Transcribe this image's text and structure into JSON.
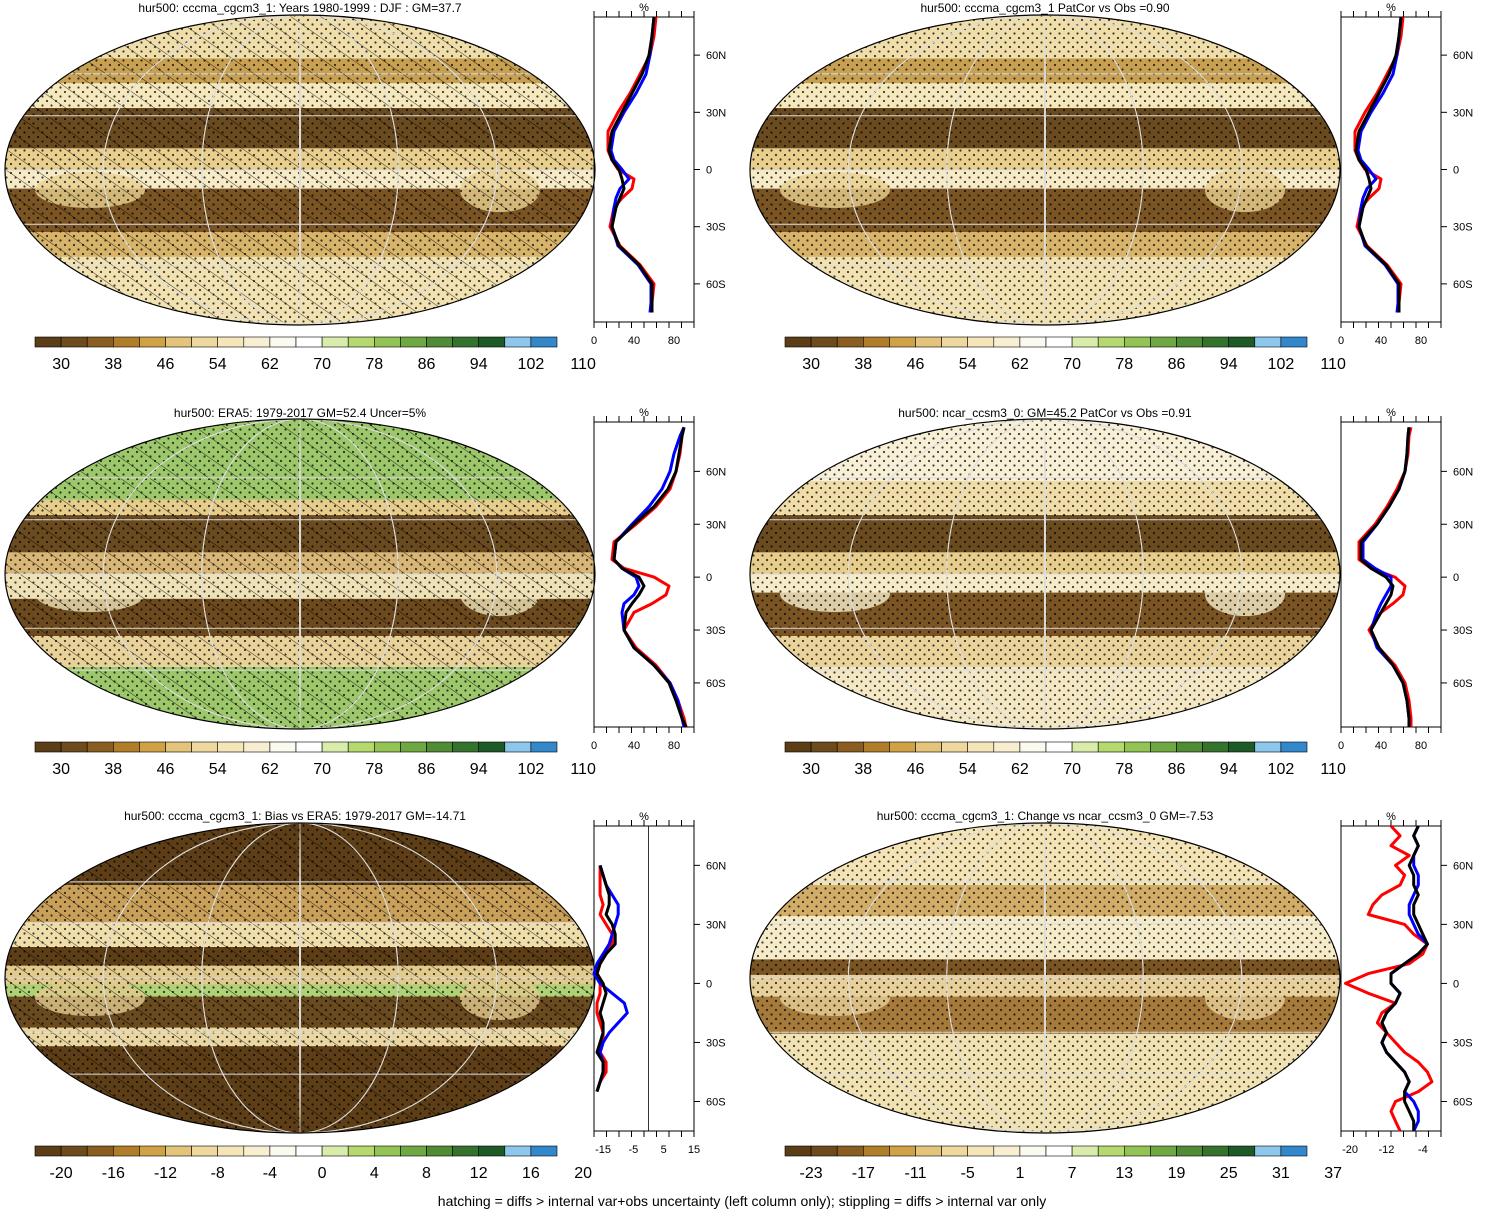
{
  "footnote": "hatching = diffs > internal var+obs uncertainty (left column only); stippling = diffs > internal var only",
  "colors": {
    "model": "#000000",
    "obs": "#0000ff",
    "second": "#ff0000",
    "palette": [
      "#5b3d17",
      "#6e4b1c",
      "#8a5e21",
      "#b07e2b",
      "#cfa345",
      "#e3c47a",
      "#eed89f",
      "#f4e6b9",
      "#f8efd2",
      "#fafaf0",
      "#ffffff",
      "#d9ecab",
      "#b5d86f",
      "#93c355",
      "#6fa843",
      "#4f8c35",
      "#35722d",
      "#1e5a27",
      "#8ec7ec",
      "#3388cc"
    ]
  },
  "panels": [
    {
      "title": "hur500: cccma_cgcm3_1: Years 1980-1999 : DJF : GM=37.7",
      "colorbar_labels": [
        "30",
        "38",
        "46",
        "54",
        "62",
        "70",
        "78",
        "86",
        "94",
        "102",
        "110"
      ],
      "profile_unit": "%",
      "profile_xticks": [
        "0",
        "40",
        "80"
      ]
    },
    {
      "title": "hur500: cccma_cgcm3_1 PatCor vs Obs =0.90",
      "colorbar_labels": [
        "30",
        "38",
        "46",
        "54",
        "62",
        "70",
        "78",
        "86",
        "94",
        "102",
        "110"
      ],
      "profile_unit": "%",
      "profile_xticks": [
        "0",
        "40",
        "80"
      ]
    },
    {
      "title": "hur500: ERA5: 1979-2017 GM=52.4 Uncer=5%",
      "colorbar_labels": [
        "30",
        "38",
        "46",
        "54",
        "62",
        "70",
        "78",
        "86",
        "94",
        "102",
        "110"
      ],
      "profile_unit": "%",
      "profile_xticks": [
        "0",
        "40",
        "80"
      ]
    },
    {
      "title": "hur500: ncar_ccsm3_0: GM=45.2 PatCor vs Obs =0.91",
      "colorbar_labels": [
        "30",
        "38",
        "46",
        "54",
        "62",
        "70",
        "78",
        "86",
        "94",
        "102",
        "110"
      ],
      "profile_unit": "%",
      "profile_xticks": [
        "0",
        "40",
        "80"
      ]
    },
    {
      "title": "hur500: cccma_cgcm3_1: Bias vs ERA5: 1979-2017 GM=-14.71",
      "colorbar_labels": [
        "-20",
        "-16",
        "-12",
        "-8",
        "-4",
        "0",
        "4",
        "8",
        "12",
        "16",
        "20"
      ],
      "profile_unit": "%",
      "profile_xticks": [
        "-15",
        "-5",
        "5",
        "15"
      ]
    },
    {
      "title": "hur500: cccma_cgcm3_1: Change vs ncar_ccsm3_0 GM=-7.53",
      "colorbar_labels": [
        "-23",
        "-17",
        "-11",
        "-5",
        "1",
        "7",
        "13",
        "19",
        "25",
        "31",
        "37"
      ],
      "profile_unit": "%",
      "profile_xticks": [
        "-20",
        "-12",
        "-4"
      ]
    }
  ],
  "chart_data": {
    "type": "line",
    "lat_ticks": [
      "60N",
      "30N",
      "0",
      "30S",
      "60S"
    ],
    "profiles": [
      {
        "panel": 0,
        "xlim": [
          0,
          100
        ],
        "lat": [
          80,
          70,
          60,
          50,
          40,
          30,
          20,
          10,
          5,
          0,
          -5,
          -10,
          -15,
          -20,
          -30,
          -40,
          -50,
          -60,
          -70,
          -75
        ],
        "series": [
          {
            "name": "",
            "color": "black",
            "values": [
              60,
              58,
              55,
              48,
              38,
              28,
              18,
              15,
              18,
              25,
              28,
              30,
              26,
              22,
              18,
              25,
              45,
              58,
              58,
              58
            ]
          },
          {
            "name": "",
            "color": "blue",
            "values": [
              60,
              58,
              56,
              52,
              42,
              30,
              20,
              17,
              20,
              28,
              35,
              26,
              22,
              20,
              18,
              24,
              44,
              57,
              57,
              56
            ]
          },
          {
            "name": "",
            "color": "red",
            "values": [
              62,
              60,
              56,
              46,
              36,
              24,
              14,
              14,
              18,
              24,
              40,
              38,
              28,
              20,
              16,
              26,
              46,
              60,
              58,
              58
            ]
          }
        ]
      },
      {
        "panel": 1,
        "xlim": [
          0,
          100
        ],
        "lat": [
          80,
          70,
          60,
          50,
          40,
          30,
          20,
          10,
          5,
          0,
          -5,
          -10,
          -15,
          -20,
          -30,
          -40,
          -50,
          -60,
          -70,
          -75
        ],
        "series": [
          {
            "name": "",
            "color": "black",
            "values": [
              60,
              58,
              55,
              48,
              38,
              28,
              18,
              15,
              18,
              25,
              28,
              30,
              26,
              22,
              18,
              25,
              45,
              58,
              58,
              58
            ]
          },
          {
            "name": "",
            "color": "blue",
            "values": [
              60,
              58,
              56,
              52,
              42,
              30,
              20,
              17,
              20,
              28,
              35,
              26,
              22,
              20,
              18,
              24,
              44,
              57,
              57,
              56
            ]
          },
          {
            "name": "",
            "color": "red",
            "values": [
              62,
              60,
              56,
              46,
              36,
              24,
              14,
              14,
              18,
              24,
              40,
              38,
              28,
              20,
              16,
              26,
              46,
              60,
              58,
              58
            ]
          }
        ]
      },
      {
        "panel": 2,
        "xlim": [
          0,
          100
        ],
        "lat": [
          85,
          80,
          70,
          60,
          50,
          40,
          30,
          20,
          10,
          5,
          0,
          -5,
          -10,
          -15,
          -20,
          -30,
          -40,
          -50,
          -60,
          -70,
          -80,
          -85
        ],
        "series": [
          {
            "name": "",
            "color": "black",
            "values": [
              90,
              88,
              85,
              82,
              74,
              60,
              40,
              22,
              20,
              28,
              45,
              50,
              45,
              38,
              32,
              30,
              40,
              60,
              75,
              82,
              88,
              92
            ]
          },
          {
            "name": "",
            "color": "blue",
            "values": [
              90,
              86,
              80,
              76,
              68,
              55,
              38,
              22,
              20,
              28,
              42,
              45,
              40,
              30,
              28,
              30,
              40,
              60,
              76,
              84,
              88,
              90
            ]
          },
          {
            "name": "",
            "color": "red",
            "values": [
              90,
              88,
              86,
              82,
              76,
              62,
              42,
              20,
              18,
              30,
              60,
              75,
              72,
              58,
              40,
              30,
              42,
              62,
              76,
              84,
              90,
              92
            ]
          }
        ]
      },
      {
        "panel": 3,
        "xlim": [
          0,
          100
        ],
        "lat": [
          85,
          80,
          70,
          60,
          50,
          40,
          30,
          20,
          10,
          5,
          0,
          -5,
          -10,
          -15,
          -20,
          -30,
          -40,
          -50,
          -60,
          -70,
          -80,
          -85
        ],
        "series": [
          {
            "name": "",
            "color": "black",
            "values": [
              68,
              67,
              66,
              64,
              58,
              48,
              36,
              20,
              20,
              30,
              45,
              52,
              50,
              45,
              40,
              30,
              38,
              52,
              62,
              66,
              68,
              68
            ]
          },
          {
            "name": "",
            "color": "blue",
            "values": [
              68,
              67,
              66,
              64,
              58,
              48,
              36,
              22,
              22,
              34,
              50,
              50,
              45,
              40,
              36,
              30,
              36,
              52,
              62,
              66,
              68,
              68
            ]
          },
          {
            "name": "",
            "color": "red",
            "values": [
              70,
              68,
              67,
              64,
              56,
              46,
              34,
              18,
              18,
              30,
              54,
              64,
              62,
              52,
              40,
              28,
              38,
              54,
              64,
              68,
              70,
              70
            ]
          }
        ]
      },
      {
        "panel": 4,
        "xlim": [
          -18,
          15
        ],
        "lat": [
          60,
          55,
          50,
          45,
          40,
          35,
          30,
          25,
          20,
          15,
          10,
          5,
          0,
          -5,
          -10,
          -15,
          -20,
          -25,
          -30,
          -35,
          -40,
          -45,
          -50,
          -55
        ],
        "series": [
          {
            "name": "",
            "color": "black",
            "values": [
              -16,
              -15,
              -14,
              -13,
              -13,
              -14,
              -12,
              -11,
              -11,
              -14,
              -16,
              -17,
              -15,
              -14,
              -15,
              -16,
              -15,
              -15,
              -16,
              -17,
              -15,
              -15,
              -16,
              -17
            ]
          },
          {
            "name": "",
            "color": "blue",
            "values": [
              -16,
              -15,
              -14,
              -12,
              -10,
              -10,
              -11,
              -12,
              -13,
              -15,
              -17,
              -18,
              -16,
              -12,
              -8,
              -7,
              -10,
              -13,
              -15,
              -16,
              -15,
              -15,
              -16,
              -17
            ]
          },
          {
            "name": "",
            "color": "red",
            "values": [
              -16,
              -16,
              -16,
              -16,
              -15,
              -16,
              -14,
              -12,
              -12,
              -14,
              -16,
              -17,
              -16,
              -16,
              -17,
              -17,
              -16,
              -15,
              -15,
              -16,
              -14,
              -14,
              -16,
              -17
            ]
          }
        ]
      },
      {
        "panel": 5,
        "xlim": [
          -22,
          0
        ],
        "lat": [
          80,
          75,
          70,
          65,
          60,
          55,
          50,
          45,
          40,
          35,
          30,
          25,
          20,
          15,
          10,
          5,
          0,
          -5,
          -10,
          -15,
          -20,
          -25,
          -30,
          -35,
          -40,
          -45,
          -50,
          -55,
          -60,
          -65,
          -70,
          -75
        ],
        "series": [
          {
            "name": "",
            "color": "black",
            "values": [
              -5,
              -6,
              -5,
              -6,
              -7,
              -6,
              -6,
              -5,
              -6,
              -6,
              -5,
              -4,
              -3,
              -5,
              -8,
              -11,
              -11,
              -9,
              -10,
              -12,
              -13,
              -12,
              -13,
              -12,
              -10,
              -8,
              -7,
              -8,
              -8,
              -7,
              -6,
              -6
            ]
          },
          {
            "name": "",
            "color": "blue",
            "values": [
              -5,
              -6,
              -5,
              -6,
              -6,
              -5,
              -5,
              -6,
              -7,
              -7,
              -6,
              -5,
              -3,
              -5,
              -8,
              -11,
              -11,
              -9,
              -10,
              -12,
              -13,
              -12,
              -13,
              -12,
              -10,
              -8,
              -7,
              -8,
              -6,
              -5,
              -5,
              -6
            ]
          },
          {
            "name": "",
            "color": "red",
            "values": [
              -11,
              -9,
              -11,
              -7,
              -10,
              -8,
              -9,
              -13,
              -15,
              -16,
              -8,
              -6,
              -3,
              -4,
              -7,
              -16,
              -21,
              -16,
              -10,
              -13,
              -14,
              -12,
              -10,
              -8,
              -5,
              -3,
              -2,
              -5,
              -10,
              -11,
              -10,
              -9
            ]
          }
        ]
      }
    ]
  }
}
